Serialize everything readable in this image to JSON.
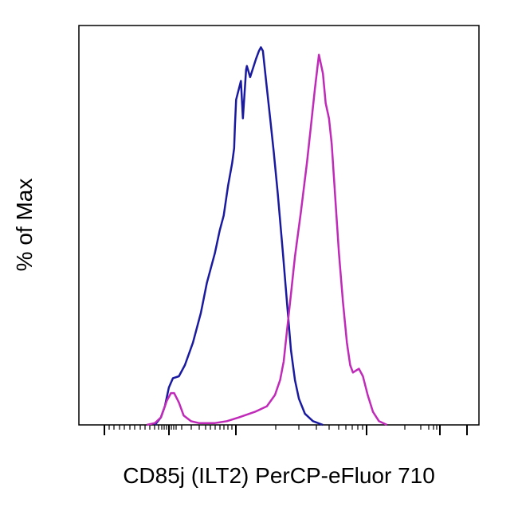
{
  "chart_data": {
    "type": "line",
    "title": "",
    "xlabel": "CD85j (ILT2) PerCP-eFluor 710",
    "ylabel": "% of Max",
    "x_scale": "biexponential",
    "grid": false,
    "legend": "none",
    "tick_labels_shown": false,
    "xlim": [
      0,
      1
    ],
    "ylim": [
      0,
      100
    ],
    "series": [
      {
        "color": "#1a1aa0",
        "points": [
          [
            0.19,
            0
          ],
          [
            0.205,
            2
          ],
          [
            0.215,
            5
          ],
          [
            0.225,
            10
          ],
          [
            0.235,
            12.5
          ],
          [
            0.25,
            13
          ],
          [
            0.265,
            16
          ],
          [
            0.285,
            22
          ],
          [
            0.305,
            30
          ],
          [
            0.32,
            38
          ],
          [
            0.34,
            46
          ],
          [
            0.352,
            52
          ],
          [
            0.362,
            56
          ],
          [
            0.373,
            64
          ],
          [
            0.383,
            70
          ],
          [
            0.388,
            74
          ],
          [
            0.39,
            80
          ],
          [
            0.393,
            87
          ],
          [
            0.405,
            92
          ],
          [
            0.41,
            82
          ],
          [
            0.418,
            95
          ],
          [
            0.42,
            96
          ],
          [
            0.428,
            93
          ],
          [
            0.437,
            96
          ],
          [
            0.443,
            98
          ],
          [
            0.45,
            100
          ],
          [
            0.455,
            101
          ],
          [
            0.46,
            100
          ],
          [
            0.468,
            92
          ],
          [
            0.478,
            82
          ],
          [
            0.487,
            73
          ],
          [
            0.497,
            62
          ],
          [
            0.51,
            46
          ],
          [
            0.52,
            33
          ],
          [
            0.53,
            20
          ],
          [
            0.54,
            12
          ],
          [
            0.55,
            7
          ],
          [
            0.565,
            3
          ],
          [
            0.585,
            1
          ],
          [
            0.61,
            0
          ]
        ]
      },
      {
        "color": "#c02ab8",
        "points": [
          [
            0.17,
            0
          ],
          [
            0.19,
            0.5
          ],
          [
            0.205,
            2
          ],
          [
            0.22,
            6.5
          ],
          [
            0.23,
            8.5
          ],
          [
            0.238,
            8.5
          ],
          [
            0.25,
            6
          ],
          [
            0.262,
            2.5
          ],
          [
            0.28,
            1
          ],
          [
            0.3,
            0.5
          ],
          [
            0.34,
            0.5
          ],
          [
            0.37,
            1
          ],
          [
            0.4,
            2
          ],
          [
            0.44,
            3.5
          ],
          [
            0.47,
            5
          ],
          [
            0.49,
            8
          ],
          [
            0.503,
            12
          ],
          [
            0.512,
            17
          ],
          [
            0.52,
            25
          ],
          [
            0.53,
            35
          ],
          [
            0.54,
            45
          ],
          [
            0.555,
            57
          ],
          [
            0.57,
            70
          ],
          [
            0.58,
            80
          ],
          [
            0.59,
            90
          ],
          [
            0.6,
            99
          ],
          [
            0.61,
            94
          ],
          [
            0.617,
            86
          ],
          [
            0.625,
            82
          ],
          [
            0.632,
            75
          ],
          [
            0.64,
            62
          ],
          [
            0.65,
            46
          ],
          [
            0.66,
            33
          ],
          [
            0.67,
            22
          ],
          [
            0.678,
            16
          ],
          [
            0.685,
            14
          ],
          [
            0.692,
            14.5
          ],
          [
            0.7,
            15
          ],
          [
            0.71,
            13
          ],
          [
            0.722,
            8
          ],
          [
            0.735,
            3.5
          ],
          [
            0.75,
            1
          ],
          [
            0.77,
            0
          ]
        ]
      }
    ]
  }
}
